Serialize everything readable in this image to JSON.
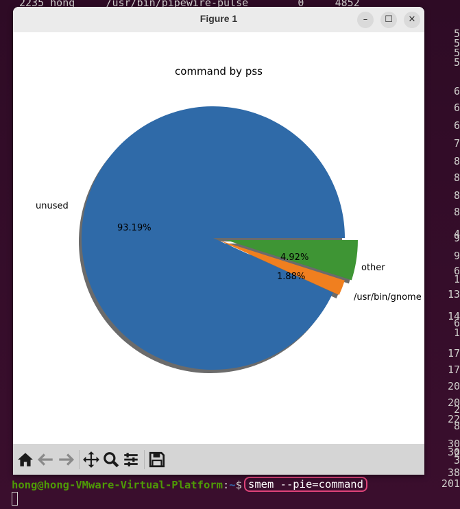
{
  "terminal": {
    "top_line": "2235 hong     /usr/bin/pipewire-pulse        0     4852",
    "right_column": [
      "5",
      "5",
      "5",
      "5",
      "6",
      "6",
      "6",
      "7",
      "8",
      "8",
      "8",
      "8",
      "9",
      "4",
      "9",
      "6",
      "1",
      "13",
      "14",
      "1",
      "6",
      "17",
      "17",
      "20",
      "20",
      "22",
      "2",
      "8",
      "30",
      "30",
      "3",
      "2",
      "38",
      "201"
    ],
    "prompt_user_host": "hong@hong-VMware-Virtual-Platform",
    "prompt_colon": ":",
    "prompt_path": "~",
    "prompt_dollar": "$",
    "command": "smem --pie=command"
  },
  "window": {
    "title": "Figure 1",
    "minimize_label": "–",
    "maximize_label": "☐",
    "close_label": "✕"
  },
  "toolbar": {
    "icons": [
      "home-icon",
      "back-icon",
      "forward-icon",
      "pan-icon",
      "zoom-icon",
      "configure-subplots-icon",
      "save-icon"
    ]
  },
  "chart_data": {
    "type": "pie",
    "title": "command by pss",
    "labels": [
      "unused",
      "/usr/bin/gnome",
      "other"
    ],
    "values": [
      93.19,
      1.88,
      4.92
    ],
    "percent_labels": [
      "93.19%",
      "1.88%",
      "4.92%"
    ],
    "colors": [
      "#2f6aa8",
      "#f07f1f",
      "#3e9534"
    ],
    "shadow": true,
    "explode": true
  }
}
